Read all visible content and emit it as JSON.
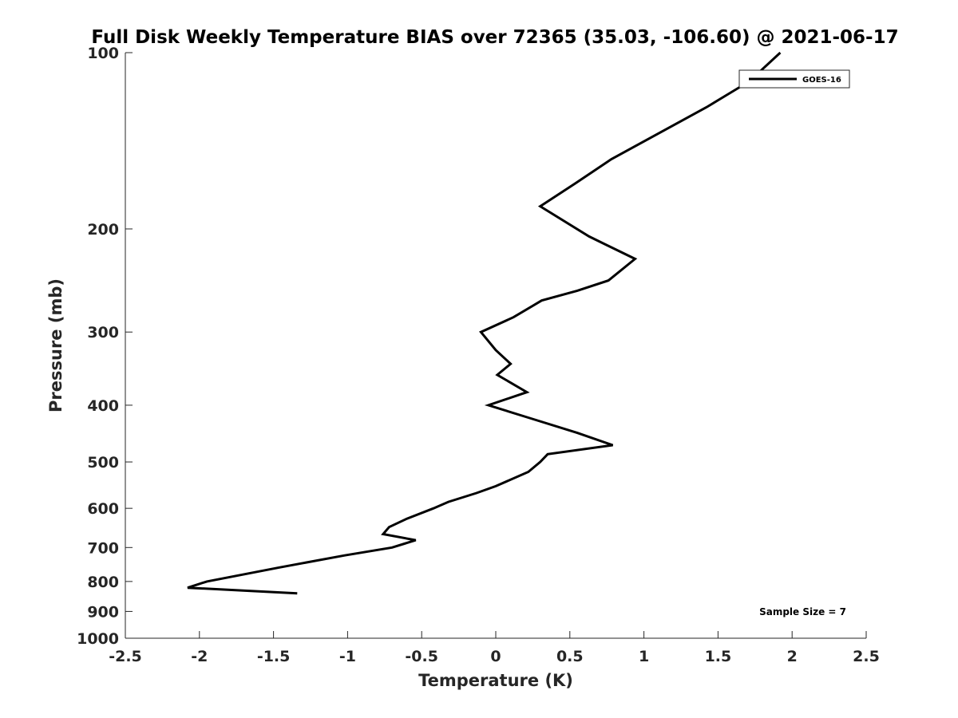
{
  "chart_data": {
    "type": "line",
    "title": "Full Disk Weekly Temperature BIAS over 72365 (35.03, -106.60) @ 2021-06-17",
    "xlabel": "Temperature (K)",
    "ylabel": "Pressure (mb)",
    "xlim": [
      -2.5,
      2.5
    ],
    "ylim": [
      100,
      1000
    ],
    "y_scale": "log",
    "y_reversed": true,
    "grid": false,
    "x_ticks": [
      -2.5,
      -2,
      -1.5,
      -1,
      -0.5,
      0,
      0.5,
      1,
      1.5,
      2,
      2.5
    ],
    "x_tick_labels": [
      "-2.5",
      "-2",
      "-1.5",
      "-1",
      "-0.5",
      "0",
      "0.5",
      "1",
      "1.5",
      "2",
      "2.5"
    ],
    "y_ticks": [
      100,
      200,
      300,
      400,
      500,
      600,
      700,
      800,
      900,
      1000
    ],
    "y_tick_labels": [
      "100",
      "200",
      "300",
      "400",
      "500",
      "600",
      "700",
      "800",
      "900",
      "1000"
    ],
    "legend": {
      "placement": "top-right",
      "entries": [
        "GOES-16"
      ]
    },
    "annotation": "Sample Size = 7",
    "series": [
      {
        "name": "GOES-16",
        "color": "#000000",
        "points": [
          [
            1.92,
            100
          ],
          [
            1.71,
            112
          ],
          [
            1.42,
            124
          ],
          [
            0.78,
            152
          ],
          [
            0.54,
            167
          ],
          [
            0.3,
            183
          ],
          [
            0.63,
            206
          ],
          [
            0.94,
            225
          ],
          [
            0.76,
            245
          ],
          [
            0.55,
            255
          ],
          [
            0.31,
            265
          ],
          [
            0.12,
            283
          ],
          [
            -0.1,
            300
          ],
          [
            0.0,
            322
          ],
          [
            0.1,
            340
          ],
          [
            0.01,
            355
          ],
          [
            0.21,
            380
          ],
          [
            -0.05,
            400
          ],
          [
            0.22,
            420
          ],
          [
            0.55,
            446
          ],
          [
            0.79,
            468
          ],
          [
            0.35,
            485
          ],
          [
            0.3,
            500
          ],
          [
            0.22,
            520
          ],
          [
            0.0,
            550
          ],
          [
            -0.13,
            565
          ],
          [
            -0.32,
            585
          ],
          [
            -0.42,
            600
          ],
          [
            -0.6,
            625
          ],
          [
            -0.72,
            646
          ],
          [
            -0.76,
            664
          ],
          [
            -0.54,
            680
          ],
          [
            -0.7,
            700
          ],
          [
            -1.02,
            722
          ],
          [
            -1.46,
            757
          ],
          [
            -1.95,
            800
          ],
          [
            -2.08,
            820
          ],
          [
            -1.34,
            838
          ]
        ]
      }
    ]
  }
}
